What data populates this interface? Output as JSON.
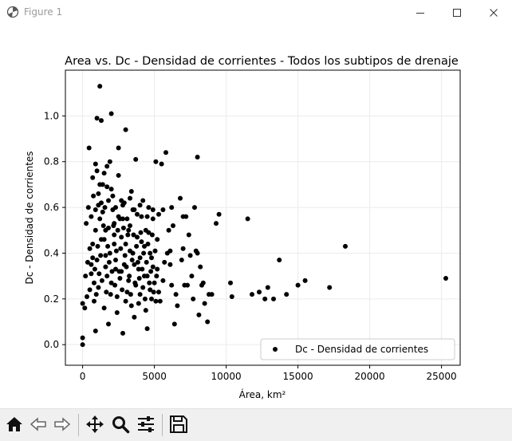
{
  "window": {
    "title": "Figure 1"
  },
  "toolbar": {
    "buttons": [
      {
        "id": "home",
        "icon": "home-icon"
      },
      {
        "id": "back",
        "icon": "back-arrow-icon"
      },
      {
        "id": "forward",
        "icon": "forward-arrow-icon"
      },
      {
        "id": "pan",
        "icon": "pan-move-icon"
      },
      {
        "id": "zoom",
        "icon": "zoom-magnifier-icon"
      },
      {
        "id": "configure",
        "icon": "configure-subplots-icon"
      },
      {
        "id": "save",
        "icon": "save-floppy-icon"
      }
    ]
  },
  "chart_data": {
    "type": "scatter",
    "title": "Area vs. Dc - Densidad de corrientes - Todos los subtipos de drenaje",
    "xlabel": "Área, km²",
    "ylabel": "Dc - Densidad de corrientes",
    "xlim": [
      -1200,
      26300
    ],
    "ylim": [
      -0.09,
      1.2
    ],
    "xticks": [
      0,
      5000,
      10000,
      15000,
      20000,
      25000
    ],
    "xtick_labels": [
      "0",
      "5000",
      "10000",
      "15000",
      "20000",
      "25000"
    ],
    "yticks": [
      0.0,
      0.2,
      0.4,
      0.6,
      0.8,
      1.0
    ],
    "ytick_labels": [
      "0.0",
      "0.2",
      "0.4",
      "0.6",
      "0.8",
      "1.0"
    ],
    "grid": true,
    "legend": {
      "position": "lower-right",
      "entries": [
        "Dc - Densidad de corrientes"
      ]
    },
    "series": [
      {
        "name": "Dc - Densidad de corrientes",
        "color": "#000000",
        "marker": "circle",
        "points": [
          [
            0,
            0.0
          ],
          [
            0,
            0.03
          ],
          [
            0,
            0.18
          ],
          [
            150,
            0.16
          ],
          [
            300,
            0.21
          ],
          [
            200,
            0.3
          ],
          [
            350,
            0.36
          ],
          [
            250,
            0.53
          ],
          [
            400,
            0.6
          ],
          [
            450,
            0.86
          ],
          [
            500,
            0.42
          ],
          [
            600,
            0.35
          ],
          [
            700,
            0.44
          ],
          [
            800,
            0.27
          ],
          [
            900,
            0.06
          ],
          [
            900,
            0.79
          ],
          [
            1000,
            0.99
          ],
          [
            1100,
            0.66
          ],
          [
            1200,
            1.13
          ],
          [
            1300,
            0.98
          ],
          [
            1400,
            0.58
          ],
          [
            1500,
            0.46
          ],
          [
            1600,
            0.39
          ],
          [
            1700,
            0.3
          ],
          [
            1800,
            0.09
          ],
          [
            1900,
            0.8
          ],
          [
            2000,
            1.01
          ],
          [
            2100,
            0.65
          ],
          [
            2200,
            0.48
          ],
          [
            2300,
            0.33
          ],
          [
            2400,
            0.14
          ],
          [
            2500,
            0.86
          ],
          [
            2600,
            0.55
          ],
          [
            2700,
            0.32
          ],
          [
            2800,
            0.05
          ],
          [
            2900,
            0.62
          ],
          [
            3000,
            0.44
          ],
          [
            3100,
            0.23
          ],
          [
            3000,
            0.94
          ],
          [
            3300,
            0.52
          ],
          [
            3400,
            0.67
          ],
          [
            3500,
            0.4
          ],
          [
            3600,
            0.12
          ],
          [
            3700,
            0.81
          ],
          [
            3800,
            0.57
          ],
          [
            3900,
            0.33
          ],
          [
            4000,
            0.22
          ],
          [
            4100,
            0.45
          ],
          [
            4200,
            0.63
          ],
          [
            4300,
            0.3
          ],
          [
            4400,
            0.5
          ],
          [
            4500,
            0.07
          ],
          [
            4600,
            0.6
          ],
          [
            4700,
            0.4
          ],
          [
            4800,
            0.2
          ],
          [
            4900,
            0.34
          ],
          [
            5000,
            0.27
          ],
          [
            5100,
            0.8
          ],
          [
            5200,
            0.46
          ],
          [
            5300,
            0.57
          ],
          [
            5400,
            0.19
          ],
          [
            5500,
            0.79
          ],
          [
            5700,
            0.36
          ],
          [
            5800,
            0.84
          ],
          [
            6000,
            0.5
          ],
          [
            6100,
            0.41
          ],
          [
            6200,
            0.26
          ],
          [
            6300,
            0.52
          ],
          [
            6400,
            0.09
          ],
          [
            6600,
            0.17
          ],
          [
            6800,
            0.64
          ],
          [
            7000,
            0.42
          ],
          [
            7100,
            0.26
          ],
          [
            7200,
            0.56
          ],
          [
            7400,
            0.48
          ],
          [
            7500,
            0.39
          ],
          [
            7600,
            0.3
          ],
          [
            7800,
            0.6
          ],
          [
            7900,
            0.41
          ],
          [
            8000,
            0.82
          ],
          [
            8100,
            0.13
          ],
          [
            8200,
            0.34
          ],
          [
            8400,
            0.27
          ],
          [
            8500,
            0.18
          ],
          [
            8700,
            0.1
          ],
          [
            8800,
            0.22
          ],
          [
            9000,
            0.22
          ],
          [
            9300,
            0.53
          ],
          [
            9500,
            0.57
          ],
          [
            10300,
            0.27
          ],
          [
            10400,
            0.21
          ],
          [
            11500,
            0.55
          ],
          [
            11800,
            0.22
          ],
          [
            12300,
            0.23
          ],
          [
            12700,
            0.2
          ],
          [
            12900,
            0.25
          ],
          [
            13300,
            0.2
          ],
          [
            13700,
            0.37
          ],
          [
            14200,
            0.22
          ],
          [
            15000,
            0.26
          ],
          [
            15500,
            0.28
          ],
          [
            17200,
            0.25
          ],
          [
            18300,
            0.43
          ],
          [
            25300,
            0.29
          ],
          [
            600,
            0.56
          ],
          [
            700,
            0.73
          ],
          [
            800,
            0.19
          ],
          [
            900,
            0.5
          ],
          [
            1000,
            0.37
          ],
          [
            1100,
            0.25
          ],
          [
            1200,
            0.55
          ],
          [
            1300,
            0.46
          ],
          [
            1400,
            0.7
          ],
          [
            1500,
            0.16
          ],
          [
            1600,
            0.34
          ],
          [
            1700,
            0.78
          ],
          [
            1800,
            0.51
          ],
          [
            1900,
            0.4
          ],
          [
            2000,
            0.27
          ],
          [
            2100,
            0.59
          ],
          [
            2200,
            0.44
          ],
          [
            2300,
            0.37
          ],
          [
            2400,
            0.21
          ],
          [
            2500,
            0.56
          ],
          [
            2600,
            0.29
          ],
          [
            2700,
            0.47
          ],
          [
            2800,
            0.61
          ],
          [
            2900,
            0.35
          ],
          [
            3000,
            0.19
          ],
          [
            3100,
            0.55
          ],
          [
            3200,
            0.28
          ],
          [
            3300,
            0.41
          ],
          [
            3400,
            0.17
          ],
          [
            3500,
            0.59
          ],
          [
            3600,
            0.35
          ],
          [
            3700,
            0.26
          ],
          [
            3800,
            0.47
          ],
          [
            3900,
            0.18
          ],
          [
            4000,
            0.38
          ],
          [
            4100,
            0.56
          ],
          [
            4200,
            0.25
          ],
          [
            4300,
            0.43
          ],
          [
            4400,
            0.15
          ],
          [
            4500,
            0.3
          ],
          [
            4600,
            0.49
          ],
          [
            4700,
            0.24
          ],
          [
            4800,
            0.38
          ],
          [
            4900,
            0.55
          ],
          [
            5100,
            0.19
          ],
          [
            5200,
            0.33
          ],
          [
            5300,
            0.23
          ],
          [
            5600,
            0.28
          ],
          [
            5900,
            0.4
          ],
          [
            6100,
            0.35
          ],
          [
            6500,
            0.22
          ],
          [
            6900,
            0.37
          ],
          [
            7300,
            0.26
          ],
          [
            7700,
            0.2
          ],
          [
            8000,
            0.4
          ],
          [
            8300,
            0.26
          ],
          [
            500,
            0.24
          ],
          [
            600,
            0.31
          ],
          [
            700,
            0.38
          ],
          [
            750,
            0.65
          ],
          [
            850,
            0.33
          ],
          [
            950,
            0.22
          ],
          [
            1050,
            0.43
          ],
          [
            1150,
            0.31
          ],
          [
            1250,
            0.39
          ],
          [
            1350,
            0.28
          ],
          [
            1450,
            0.52
          ],
          [
            1550,
            0.6
          ],
          [
            1650,
            0.23
          ],
          [
            1750,
            0.43
          ],
          [
            1850,
            0.36
          ],
          [
            1950,
            0.22
          ],
          [
            2050,
            0.32
          ],
          [
            2150,
            0.52
          ],
          [
            2250,
            0.26
          ],
          [
            2350,
            0.41
          ],
          [
            2450,
            0.5
          ],
          [
            2550,
            0.32
          ],
          [
            2650,
            0.42
          ],
          [
            2750,
            0.24
          ],
          [
            2850,
            0.51
          ],
          [
            2950,
            0.39
          ],
          [
            3050,
            0.34
          ],
          [
            3150,
            0.48
          ],
          [
            3250,
            0.3
          ],
          [
            3350,
            0.22
          ],
          [
            3450,
            0.37
          ],
          [
            3550,
            0.48
          ],
          [
            3650,
            0.27
          ],
          [
            3750,
            0.43
          ],
          [
            3850,
            0.36
          ],
          [
            3950,
            0.29
          ],
          [
            4050,
            0.49
          ],
          [
            4150,
            0.33
          ],
          [
            4250,
            0.4
          ],
          [
            4350,
            0.2
          ],
          [
            4450,
            0.36
          ],
          [
            4550,
            0.44
          ],
          [
            4650,
            0.27
          ],
          [
            4750,
            0.32
          ],
          [
            4850,
            0.48
          ],
          [
            4950,
            0.23
          ],
          [
            5050,
            0.41
          ],
          [
            5150,
            0.3
          ],
          [
            1000,
            0.76
          ],
          [
            1500,
            0.75
          ],
          [
            2000,
            0.68
          ],
          [
            2500,
            0.74
          ],
          [
            1200,
            0.7
          ],
          [
            1800,
            0.63
          ],
          [
            2300,
            0.6
          ],
          [
            1100,
            0.61
          ],
          [
            900,
            0.59
          ],
          [
            1300,
            0.62
          ],
          [
            1700,
            0.69
          ],
          [
            2700,
            0.63
          ],
          [
            3300,
            0.64
          ],
          [
            3600,
            0.59
          ],
          [
            4000,
            0.61
          ],
          [
            4500,
            0.56
          ],
          [
            4900,
            0.59
          ],
          [
            5600,
            0.59
          ],
          [
            6200,
            0.6
          ],
          [
            7000,
            0.56
          ],
          [
            1600,
            0.5
          ],
          [
            2200,
            0.53
          ],
          [
            2800,
            0.55
          ],
          [
            3200,
            0.5
          ]
        ]
      }
    ]
  }
}
